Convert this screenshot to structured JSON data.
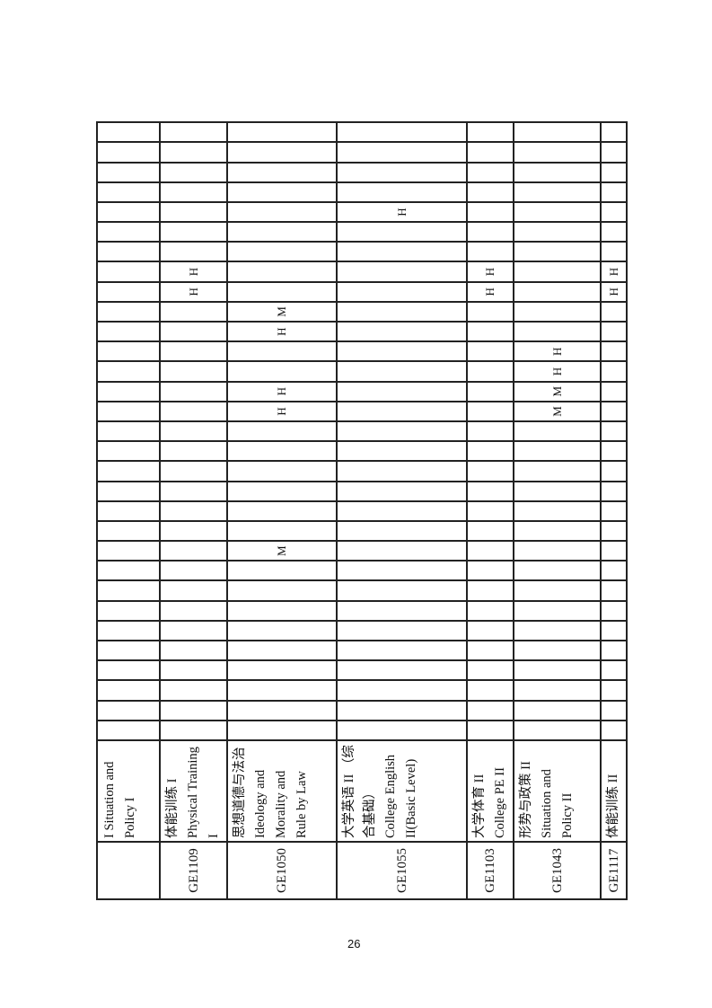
{
  "page_number": "26",
  "courses": [
    {
      "code": "",
      "name": "I Situation and Policy I",
      "marks": [
        "",
        "",
        "",
        "",
        "",
        "",
        "",
        "",
        "",
        "",
        "",
        "",
        "",
        "",
        "",
        "",
        "",
        "",
        "",
        "",
        "",
        "",
        "",
        "",
        "",
        "",
        "",
        "",
        "",
        "",
        ""
      ]
    },
    {
      "code": "GE1109",
      "name": "体能训练 I Physical Training I",
      "marks": [
        "",
        "",
        "",
        "",
        "",
        "",
        "",
        "",
        "",
        "",
        "",
        "",
        "",
        "",
        "",
        "",
        "",
        "",
        "",
        "",
        "",
        "",
        "H",
        "H",
        "",
        "",
        "",
        "",
        "",
        "",
        ""
      ]
    },
    {
      "code": "GE1050",
      "name": "思想道德与法治 Ideology and Morality and Rule by Law",
      "marks": [
        "",
        "",
        "",
        "",
        "",
        "",
        "",
        "",
        "",
        "M",
        "",
        "",
        "",
        "",
        "",
        "",
        "H",
        "H",
        "",
        "",
        "H",
        "M",
        "",
        "",
        "",
        "",
        "",
        "",
        "",
        "",
        ""
      ]
    },
    {
      "code": "GE1055",
      "name": "大学英语 II （综合基础） College English II(Basic Level)",
      "marks": [
        "",
        "",
        "",
        "",
        "",
        "",
        "",
        "",
        "",
        "",
        "",
        "",
        "",
        "",
        "",
        "",
        "",
        "",
        "",
        "",
        "",
        "",
        "",
        "",
        "",
        "",
        "H",
        "",
        "",
        "",
        ""
      ]
    },
    {
      "code": "GE1103",
      "name": "大学体育 II College PE II",
      "marks": [
        "",
        "",
        "",
        "",
        "",
        "",
        "",
        "",
        "",
        "",
        "",
        "",
        "",
        "",
        "",
        "",
        "",
        "",
        "",
        "",
        "",
        "",
        "H",
        "H",
        "",
        "",
        "",
        "",
        "",
        "",
        ""
      ]
    },
    {
      "code": "GE1043",
      "name": "形势与政策 II Situation and Policy II",
      "marks": [
        "",
        "",
        "",
        "",
        "",
        "",
        "",
        "",
        "",
        "",
        "",
        "",
        "",
        "",
        "",
        "",
        "M",
        "M",
        "H",
        "H",
        "",
        "",
        "",
        "",
        "",
        "",
        "",
        "",
        "",
        "",
        ""
      ]
    },
    {
      "code": "GE1117",
      "name": "体能训练 II",
      "marks": [
        "",
        "",
        "",
        "",
        "",
        "",
        "",
        "",
        "",
        "",
        "",
        "",
        "",
        "",
        "",
        "",
        "",
        "",
        "",
        "",
        "",
        "",
        "H",
        "H",
        "",
        "",
        "",
        "",
        "",
        "",
        ""
      ]
    }
  ]
}
